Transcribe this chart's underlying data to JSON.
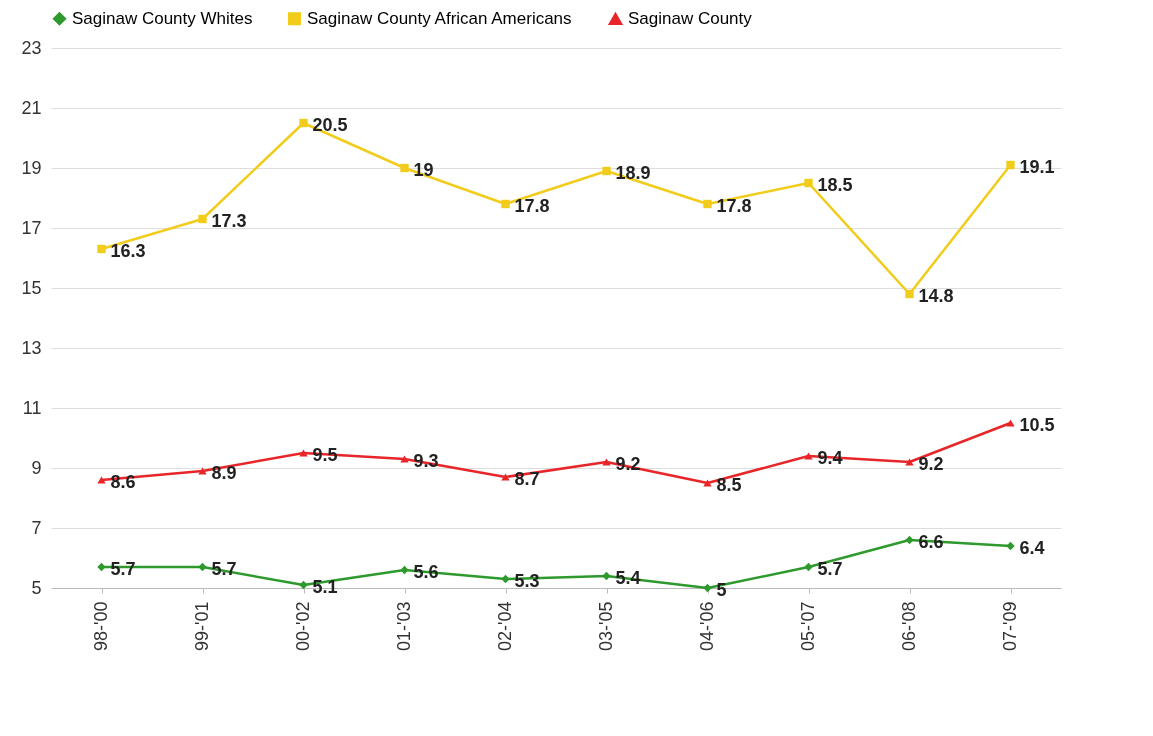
{
  "chart_data": {
    "type": "line",
    "categories": [
      "98-'00",
      "99-'01",
      "00-'02",
      "01-'03",
      "02-'04",
      "03-'05",
      "04-'06",
      "05-'07",
      "06-'08",
      "07-'09"
    ],
    "series": [
      {
        "name": "Saginaw County Whites",
        "color": "#2e9a2e",
        "marker": "diamond",
        "values": [
          5.7,
          5.7,
          5.1,
          5.6,
          5.3,
          5.4,
          5,
          5.7,
          6.6,
          6.4
        ]
      },
      {
        "name": "Saginaw County African Americans",
        "color": "#f2cc1a",
        "marker": "square",
        "values": [
          16.3,
          17.3,
          20.5,
          19,
          17.8,
          18.9,
          17.8,
          18.5,
          14.8,
          19.1
        ]
      },
      {
        "name": "Saginaw County",
        "color": "#e8262a",
        "marker": "triangle",
        "values": [
          8.6,
          8.9,
          9.5,
          9.3,
          8.7,
          9.2,
          8.5,
          9.4,
          9.2,
          10.5
        ]
      }
    ],
    "ylim": [
      5,
      23
    ],
    "yticks": [
      5,
      7,
      9,
      11,
      13,
      15,
      17,
      19,
      21,
      23
    ],
    "grid": "y",
    "legend": "top",
    "data_labels": true,
    "line_style": "solid"
  }
}
